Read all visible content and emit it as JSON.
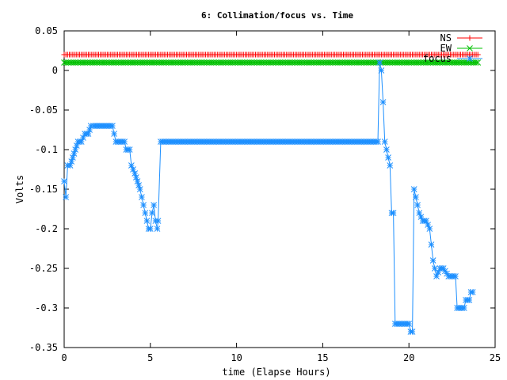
{
  "chart_data": {
    "type": "line",
    "title": "6: Collimation/focus vs. Time",
    "xlabel": "time (Elapse Hours)",
    "ylabel": "Volts",
    "xlim": [
      0,
      25
    ],
    "ylim": [
      -0.35,
      0.05
    ],
    "x_ticks": [
      0,
      5,
      10,
      15,
      20,
      25
    ],
    "x_tick_labels": [
      "0",
      "5",
      "10",
      "15",
      "20",
      "25"
    ],
    "y_ticks": [
      0.05,
      0,
      -0.05,
      -0.1,
      -0.15,
      -0.2,
      -0.25,
      -0.3,
      -0.35
    ],
    "y_tick_labels": [
      "0.05",
      "0",
      "-0.05",
      "-0.1",
      "-0.15",
      "-0.2",
      "-0.25",
      "-0.3",
      "-0.35"
    ],
    "grid": false,
    "legend_position": "top-right",
    "series": [
      {
        "name": "NS",
        "color": "#ff0000",
        "marker": "plus",
        "points": [
          [
            0,
            0.02
          ],
          [
            24,
            0.02
          ]
        ],
        "sample_step": 0.1
      },
      {
        "name": "EW",
        "color": "#00c000",
        "marker": "cross",
        "points": [
          [
            0,
            0.01
          ],
          [
            24,
            0.01
          ]
        ],
        "sample_step": 0.1
      },
      {
        "name": "focus",
        "color": "#1e90ff",
        "marker": "star",
        "points": [
          [
            0,
            -0.14
          ],
          [
            0.1,
            -0.16
          ],
          [
            0.2,
            -0.12
          ],
          [
            0.35,
            -0.12
          ],
          [
            0.5,
            -0.11
          ],
          [
            0.65,
            -0.1
          ],
          [
            0.8,
            -0.09
          ],
          [
            1.0,
            -0.09
          ],
          [
            1.2,
            -0.08
          ],
          [
            1.4,
            -0.08
          ],
          [
            1.55,
            -0.07
          ],
          [
            1.7,
            -0.07
          ],
          [
            2.0,
            -0.07
          ],
          [
            2.3,
            -0.07
          ],
          [
            2.6,
            -0.07
          ],
          [
            2.8,
            -0.07
          ],
          [
            2.9,
            -0.08
          ],
          [
            3.0,
            -0.09
          ],
          [
            3.2,
            -0.09
          ],
          [
            3.5,
            -0.09
          ],
          [
            3.6,
            -0.1
          ],
          [
            3.8,
            -0.1
          ],
          [
            3.9,
            -0.12
          ],
          [
            4.1,
            -0.13
          ],
          [
            4.25,
            -0.14
          ],
          [
            4.4,
            -0.15
          ],
          [
            4.5,
            -0.16
          ],
          [
            4.6,
            -0.17
          ],
          [
            4.7,
            -0.18
          ],
          [
            4.8,
            -0.19
          ],
          [
            4.9,
            -0.2
          ],
          [
            5.0,
            -0.2
          ],
          [
            5.1,
            -0.18
          ],
          [
            5.2,
            -0.17
          ],
          [
            5.3,
            -0.19
          ],
          [
            5.4,
            -0.2
          ],
          [
            5.45,
            -0.19
          ],
          [
            5.6,
            -0.09
          ],
          [
            6.5,
            -0.09
          ],
          [
            8,
            -0.09
          ],
          [
            10,
            -0.09
          ],
          [
            12,
            -0.09
          ],
          [
            14,
            -0.09
          ],
          [
            16,
            -0.09
          ],
          [
            17.5,
            -0.09
          ],
          [
            18.2,
            -0.09
          ],
          [
            18.3,
            0.01
          ],
          [
            18.4,
            0.0
          ],
          [
            18.5,
            -0.04
          ],
          [
            18.6,
            -0.09
          ],
          [
            18.7,
            -0.1
          ],
          [
            18.8,
            -0.11
          ],
          [
            18.9,
            -0.12
          ],
          [
            19.0,
            -0.18
          ],
          [
            19.1,
            -0.18
          ],
          [
            19.2,
            -0.32
          ],
          [
            19.5,
            -0.32
          ],
          [
            19.8,
            -0.32
          ],
          [
            20.0,
            -0.32
          ],
          [
            20.1,
            -0.33
          ],
          [
            20.2,
            -0.33
          ],
          [
            20.3,
            -0.15
          ],
          [
            20.4,
            -0.16
          ],
          [
            20.5,
            -0.17
          ],
          [
            20.6,
            -0.18
          ],
          [
            20.8,
            -0.19
          ],
          [
            21.0,
            -0.19
          ],
          [
            21.2,
            -0.2
          ],
          [
            21.3,
            -0.22
          ],
          [
            21.4,
            -0.24
          ],
          [
            21.5,
            -0.25
          ],
          [
            21.6,
            -0.26
          ],
          [
            21.8,
            -0.25
          ],
          [
            22.0,
            -0.25
          ],
          [
            22.3,
            -0.26
          ],
          [
            22.5,
            -0.26
          ],
          [
            22.7,
            -0.26
          ],
          [
            22.8,
            -0.3
          ],
          [
            23.0,
            -0.3
          ],
          [
            23.2,
            -0.3
          ],
          [
            23.3,
            -0.29
          ],
          [
            23.5,
            -0.29
          ],
          [
            23.6,
            -0.28
          ],
          [
            23.7,
            -0.28
          ]
        ]
      }
    ]
  }
}
